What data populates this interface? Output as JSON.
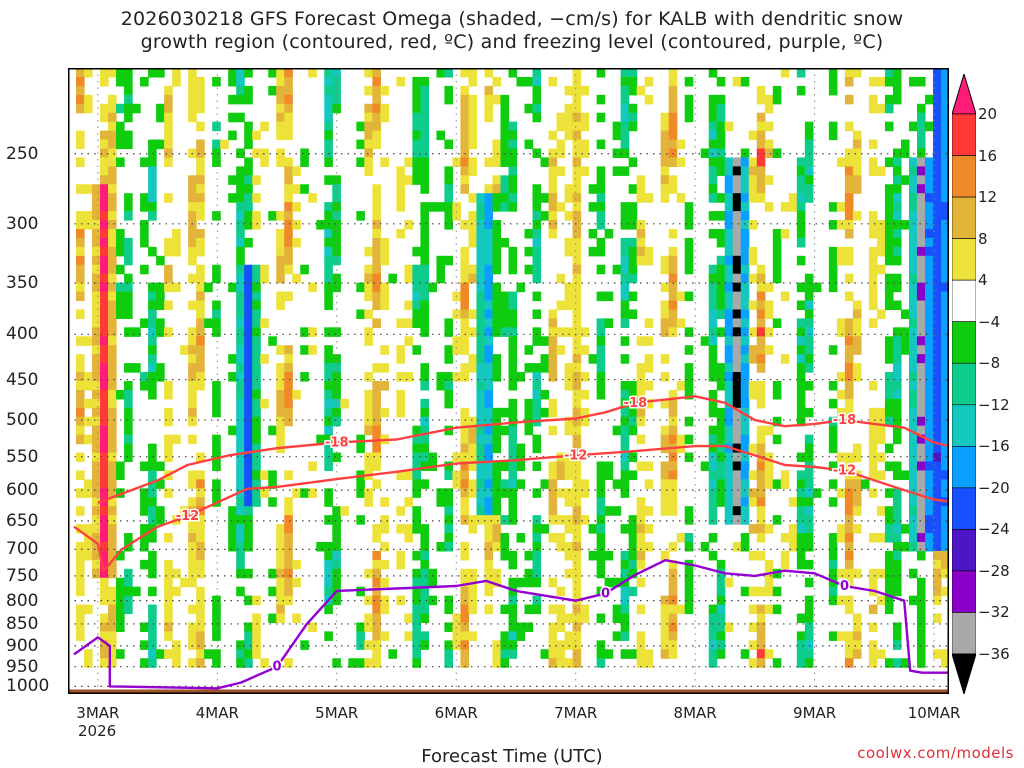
{
  "title_line1": "2026030218 GFS Forecast Omega (shaded, −cm/s) for KALB with dendritic snow",
  "title_line2": "growth region (contoured, red, ºC) and freezing level (contoured, purple, ºC)",
  "credit": "coolwx.com/models",
  "chart_data": {
    "type": "heatmap",
    "title": "2026030218 GFS Forecast Omega (shaded, −cm/s) for KALB with dendritic snow growth region (contoured, red, ºC) and freezing level (contoured, purple, ºC)",
    "xlabel": "Forecast Time (UTC)",
    "ylabel": "",
    "x_ticks": [
      "3MAR",
      "4MAR",
      "5MAR",
      "6MAR",
      "7MAR",
      "8MAR",
      "9MAR",
      "10MAR"
    ],
    "x_year": "2026",
    "y_ticks": [
      250,
      300,
      350,
      400,
      450,
      500,
      550,
      600,
      650,
      700,
      750,
      800,
      850,
      900,
      950,
      1000
    ],
    "y_scale": "log-pressure",
    "ylim": [
      1020,
      200
    ],
    "xlim_days": [
      2.75,
      10.125
    ],
    "grid": true,
    "colorbar": {
      "levels": [
        -36,
        -32,
        -28,
        -24,
        -20,
        -16,
        -12,
        -8,
        -4,
        4,
        8,
        12,
        16,
        20
      ],
      "labels": [
        "20",
        "16",
        "12",
        "8",
        "4",
        "−4",
        "−8",
        "−12",
        "−16",
        "−20",
        "−24",
        "−28",
        "−32",
        "−36"
      ],
      "colors": [
        "#000000",
        "#a9a9a9",
        "#8a00c8",
        "#4c16c4",
        "#1650ff",
        "#0aa0ff",
        "#14c8c0",
        "#0ecd8c",
        "#0fcc0f",
        "#ffffff",
        "#ece23a",
        "#e3b43a",
        "#ef8a28",
        "#ff3838",
        "#ff1c78"
      ]
    },
    "contours": [
      {
        "label": "-18",
        "color": "#ff4040",
        "points": [
          [
            3.0,
            620
          ],
          [
            3.5,
            585
          ],
          [
            3.75,
            562
          ],
          [
            4.1,
            548
          ],
          [
            4.5,
            538
          ],
          [
            5.0,
            530
          ],
          [
            5.5,
            526
          ],
          [
            6.0,
            510
          ],
          [
            6.5,
            503
          ],
          [
            7.0,
            498
          ],
          [
            7.25,
            490
          ],
          [
            7.5,
            478
          ],
          [
            8.0,
            470
          ],
          [
            8.25,
            478
          ],
          [
            8.5,
            500
          ],
          [
            8.75,
            508
          ],
          [
            9.0,
            505
          ],
          [
            9.25,
            500
          ],
          [
            9.5,
            505
          ],
          [
            9.75,
            510
          ],
          [
            10.0,
            530
          ],
          [
            10.125,
            535
          ]
        ]
      },
      {
        "label": "-12",
        "color": "#ff4040",
        "points": [
          [
            2.8,
            660
          ],
          [
            3.0,
            690
          ],
          [
            3.05,
            740
          ],
          [
            3.2,
            700
          ],
          [
            3.5,
            660
          ],
          [
            3.75,
            642
          ],
          [
            4.25,
            598
          ],
          [
            4.5,
            595
          ],
          [
            5.0,
            583
          ],
          [
            5.5,
            572
          ],
          [
            6.0,
            560
          ],
          [
            6.5,
            555
          ],
          [
            7.0,
            548
          ],
          [
            7.5,
            542
          ],
          [
            8.0,
            535
          ],
          [
            8.25,
            535
          ],
          [
            8.5,
            548
          ],
          [
            8.75,
            562
          ],
          [
            9.0,
            565
          ],
          [
            9.25,
            570
          ],
          [
            9.5,
            585
          ],
          [
            9.75,
            600
          ],
          [
            10.0,
            615
          ],
          [
            10.125,
            618
          ]
        ]
      },
      {
        "label": "0",
        "color": "#9400d3",
        "points": [
          [
            2.8,
            920
          ],
          [
            3.0,
            880
          ],
          [
            3.1,
            900
          ],
          [
            3.1,
            1000
          ],
          [
            4.0,
            1005
          ],
          [
            4.2,
            990
          ],
          [
            4.5,
            950
          ],
          [
            4.75,
            850
          ],
          [
            5.0,
            780
          ],
          [
            5.5,
            775
          ],
          [
            6.0,
            770
          ],
          [
            6.25,
            760
          ],
          [
            6.5,
            780
          ],
          [
            7.0,
            800
          ],
          [
            7.25,
            785
          ],
          [
            7.5,
            748
          ],
          [
            7.75,
            720
          ],
          [
            8.0,
            730
          ],
          [
            8.25,
            745
          ],
          [
            8.5,
            750
          ],
          [
            8.75,
            740
          ],
          [
            9.0,
            745
          ],
          [
            9.25,
            770
          ],
          [
            9.5,
            780
          ],
          [
            9.75,
            800
          ],
          [
            9.8,
            960
          ],
          [
            9.9,
            965
          ],
          [
            10.125,
            965
          ]
        ]
      }
    ],
    "omega_features": [
      {
        "day": 3.05,
        "pmin": 270,
        "pmax": 760,
        "value": 20
      },
      {
        "day": 4.25,
        "pmin": 330,
        "pmax": 620,
        "value": -24
      },
      {
        "day": 6.25,
        "pmin": 280,
        "pmax": 640,
        "value": -20
      },
      {
        "day": 7.0,
        "pmin": 200,
        "pmax": 1000,
        "value": 8
      },
      {
        "day": 8.35,
        "pmin": 250,
        "pmax": 650,
        "value": -36
      },
      {
        "day": 9.9,
        "pmin": 250,
        "pmax": 700,
        "value": -36
      },
      {
        "day": 10.05,
        "pmin": 200,
        "pmax": 700,
        "value": -28
      }
    ]
  }
}
